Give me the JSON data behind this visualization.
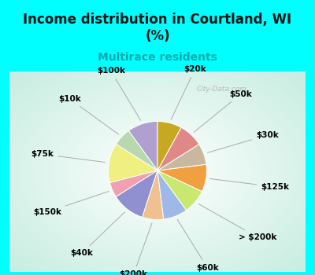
{
  "title": "Income distribution in Courtland, WI\n(%)",
  "subtitle": "Multirace residents",
  "bg_cyan": "#00FFFF",
  "bg_chart_corners": "#b0e8d8",
  "labels": [
    "$100k",
    "$10k",
    "$75k",
    "$150k",
    "$40k",
    "$200k",
    "$60k",
    "> $200k",
    "$125k",
    "$30k",
    "$50k",
    "$20k"
  ],
  "values": [
    10,
    6,
    13,
    5,
    11,
    7,
    8,
    8,
    9,
    7,
    8,
    8
  ],
  "colors": [
    "#b0a0d0",
    "#b8d8b0",
    "#f0f080",
    "#f0a0b0",
    "#9090d0",
    "#f0c090",
    "#a0b8e8",
    "#c8e870",
    "#f0a040",
    "#c8b8a0",
    "#e08888",
    "#c8a820"
  ],
  "start_angle": 90,
  "label_r": 1.32,
  "watermark": "City-Data.com",
  "title_fontsize": 12,
  "subtitle_fontsize": 10,
  "label_fontsize": 7.5
}
